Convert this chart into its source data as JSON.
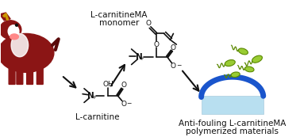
{
  "background_color": "#ffffff",
  "cow_body_color": "#8B1515",
  "cow_dark": "#5a0a0a",
  "cow_white": "#ffffff",
  "cow_nose_color": "#ff8888",
  "arrow_color": "#1a1a1a",
  "blue_arrow_color": "#1a55cc",
  "surface_color": "#b8dff0",
  "bacteria_color": "#99cc33",
  "bacteria_dark": "#5a8800",
  "label_lcarnitine": "L-carnitine",
  "label_monomer_1": "L-carnitineMA",
  "label_monomer_2": "monomer",
  "label_antifouling_1": "Anti-fouling L-carnitineMA",
  "label_antifouling_2": "polymerized materials",
  "text_color": "#111111",
  "bond_color": "#111111",
  "font_size": 7.5,
  "bond_lw": 1.2
}
